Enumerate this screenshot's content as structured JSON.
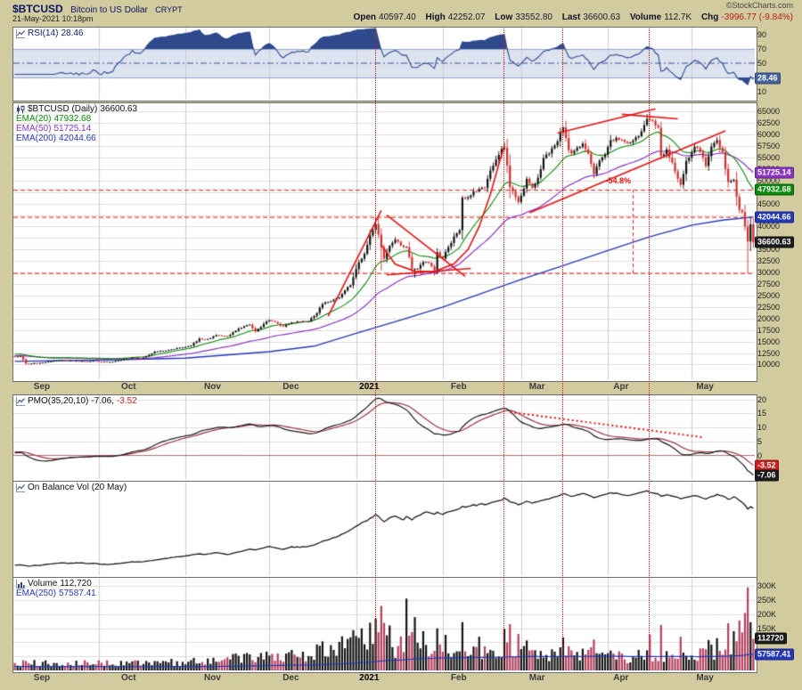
{
  "header": {
    "symbol": "$BTCUSD",
    "name": "Bitcoin to US Dollar",
    "exchange": "CRYPT",
    "datetime": "21-May-2021 10:18pm",
    "copyright": "©StockCharts.com",
    "quote": {
      "open_label": "Open",
      "open": "40597.40",
      "high_label": "High",
      "high": "42252.07",
      "low_label": "Low",
      "low": "33552.80",
      "last_label": "Last",
      "last": "36600.63",
      "volume_label": "Volume",
      "volume": "112.7K",
      "chg_label": "Chg",
      "chg": "-3996.77 (-9.84%)"
    }
  },
  "x_axis": {
    "end_day": 264,
    "month_gridline_days": [
      30,
      61,
      91,
      122,
      153,
      181,
      212,
      242
    ],
    "labels": [
      {
        "text": "Sep",
        "day": 10
      },
      {
        "text": "Oct",
        "day": 41
      },
      {
        "text": "Nov",
        "day": 71
      },
      {
        "text": "Dec",
        "day": 99
      },
      {
        "text": "2021",
        "day": 127,
        "year": true
      },
      {
        "text": "Feb",
        "day": 159
      },
      {
        "text": "Mar",
        "day": 187
      },
      {
        "text": "Apr",
        "day": 217
      },
      {
        "text": "May",
        "day": 247
      }
    ],
    "red_vline_days": [
      129,
      175,
      196,
      227
    ]
  },
  "chart_data": [
    {
      "id": "rsi",
      "type": "line",
      "panel_label": "RSI(14)",
      "current_text": "28.46",
      "current_value": 28.46,
      "ylim": [
        0,
        100
      ],
      "yticks": [
        [
          90,
          "90"
        ],
        [
          70,
          "70"
        ],
        [
          50,
          "50"
        ],
        [
          30,
          "30"
        ],
        [
          10,
          "10"
        ]
      ],
      "overbought": 70,
      "oversold": 30,
      "midline": 50,
      "line_color": "#2e4a8c",
      "band_color": "#dde4f0",
      "badges": [
        {
          "value": 28.46,
          "text": "28.46",
          "bg": "#46639c"
        }
      ],
      "derived_from": "RSI(14) computed from daily closes below"
    },
    {
      "id": "price",
      "type": "candlestick",
      "panel_label": "$BTCUSD (Daily)",
      "last_text": "36600.63",
      "last_value": 36600.63,
      "ylim": [
        6800,
        66800
      ],
      "yticks": [
        [
          65000,
          "65000"
        ],
        [
          62500,
          "62500"
        ],
        [
          60000,
          "60000"
        ],
        [
          57500,
          "57500"
        ],
        [
          55000,
          "55000"
        ],
        [
          52500,
          "52500"
        ],
        [
          50000,
          "50000"
        ],
        [
          45000,
          "45000"
        ],
        [
          40000,
          "40000"
        ],
        [
          35000,
          "35000"
        ],
        [
          32500,
          "32500"
        ],
        [
          30000,
          "30000"
        ],
        [
          27500,
          "27500"
        ],
        [
          25000,
          "25000"
        ],
        [
          22500,
          "22500"
        ],
        [
          20000,
          "20000"
        ],
        [
          17500,
          "17500"
        ],
        [
          15000,
          "15000"
        ],
        [
          12500,
          "12500"
        ],
        [
          10000,
          "10000"
        ]
      ],
      "up_color": "#141414",
      "down_color": "#d22d2d",
      "overlays": [
        {
          "label": "EMA(20)",
          "text": "47932.68",
          "value": 47932.68,
          "color": "#0b8a0b",
          "period": 20
        },
        {
          "label": "EMA(50)",
          "text": "51725.14",
          "value": 51725.14,
          "color": "#8a35c4",
          "period": 50
        },
        {
          "label": "EMA(200)",
          "text": "42044.66",
          "value": 42044.66,
          "color": "#2438b8",
          "period": 200,
          "anchors": [
            [
              0,
              10700
            ],
            [
              30,
              10950
            ],
            [
              61,
              11400
            ],
            [
              91,
              12800
            ],
            [
              107,
              14000
            ],
            [
              122,
              16800
            ],
            [
              137,
              19500
            ],
            [
              153,
              22500
            ],
            [
              167,
              25500
            ],
            [
              181,
              28500
            ],
            [
              196,
              31500
            ],
            [
              212,
              34800
            ],
            [
              227,
              37800
            ],
            [
              242,
              40300
            ],
            [
              253,
              41400
            ],
            [
              264,
              42044.66
            ]
          ]
        }
      ],
      "close_anchors": [
        [
          0,
          11720
        ],
        [
          2,
          11900
        ],
        [
          4,
          10190
        ],
        [
          8,
          10340
        ],
        [
          12,
          10660
        ],
        [
          16,
          10950
        ],
        [
          20,
          10850
        ],
        [
          24,
          10700
        ],
        [
          28,
          10760
        ],
        [
          31,
          10620
        ],
        [
          34,
          10570
        ],
        [
          38,
          10940
        ],
        [
          42,
          11420
        ],
        [
          46,
          11500
        ],
        [
          50,
          12780
        ],
        [
          54,
          13050
        ],
        [
          58,
          13560
        ],
        [
          60,
          13800
        ],
        [
          63,
          14100
        ],
        [
          66,
          15600
        ],
        [
          69,
          15480
        ],
        [
          72,
          16320
        ],
        [
          76,
          16100
        ],
        [
          80,
          17800
        ],
        [
          84,
          18720
        ],
        [
          86,
          17150
        ],
        [
          89,
          18760
        ],
        [
          91,
          19700
        ],
        [
          94,
          18800
        ],
        [
          96,
          18320
        ],
        [
          99,
          19150
        ],
        [
          102,
          19360
        ],
        [
          105,
          19430
        ],
        [
          108,
          21310
        ],
        [
          110,
          23100
        ],
        [
          113,
          23820
        ],
        [
          116,
          24710
        ],
        [
          118,
          26280
        ],
        [
          120,
          27080
        ],
        [
          121,
          29000
        ],
        [
          123,
          32200
        ],
        [
          125,
          34050
        ],
        [
          127,
          38150
        ],
        [
          129,
          40670
        ],
        [
          131,
          35480
        ],
        [
          132,
          33010
        ],
        [
          134,
          35880
        ],
        [
          136,
          37320
        ],
        [
          138,
          36010
        ],
        [
          140,
          35510
        ],
        [
          142,
          31000
        ],
        [
          144,
          30830
        ],
        [
          146,
          32250
        ],
        [
          148,
          32110
        ],
        [
          150,
          30410
        ],
        [
          151,
          34320
        ],
        [
          153,
          33110
        ],
        [
          155,
          35470
        ],
        [
          157,
          37620
        ],
        [
          159,
          39240
        ],
        [
          160,
          46370
        ],
        [
          162,
          46320
        ],
        [
          164,
          47500
        ],
        [
          166,
          47910
        ],
        [
          168,
          48620
        ],
        [
          170,
          52150
        ],
        [
          173,
          55890
        ],
        [
          175,
          57410
        ],
        [
          177,
          48820
        ],
        [
          179,
          46280
        ],
        [
          180,
          45140
        ],
        [
          182,
          48380
        ],
        [
          183,
          50410
        ],
        [
          185,
          48750
        ],
        [
          187,
          50330
        ],
        [
          189,
          54870
        ],
        [
          191,
          55910
        ],
        [
          193,
          57770
        ],
        [
          196,
          61190
        ],
        [
          198,
          56830
        ],
        [
          199,
          55610
        ],
        [
          201,
          56900
        ],
        [
          203,
          58080
        ],
        [
          205,
          55770
        ],
        [
          207,
          51680
        ],
        [
          209,
          54320
        ],
        [
          211,
          55810
        ],
        [
          213,
          58790
        ],
        [
          215,
          59120
        ],
        [
          217,
          58720
        ],
        [
          219,
          58040
        ],
        [
          221,
          59110
        ],
        [
          223,
          59790
        ],
        [
          225,
          62060
        ],
        [
          226,
          63520
        ],
        [
          227,
          63110
        ],
        [
          229,
          62240
        ],
        [
          230,
          61390
        ],
        [
          231,
          55040
        ],
        [
          233,
          56410
        ],
        [
          235,
          53820
        ],
        [
          237,
          50510
        ],
        [
          238,
          49010
        ],
        [
          240,
          54020
        ],
        [
          241,
          54880
        ],
        [
          243,
          57690
        ],
        [
          245,
          56590
        ],
        [
          247,
          53210
        ],
        [
          249,
          57360
        ],
        [
          251,
          58930
        ],
        [
          253,
          55880
        ],
        [
          255,
          49710
        ],
        [
          257,
          49880
        ],
        [
          259,
          43540
        ],
        [
          260,
          42880
        ],
        [
          261,
          40120
        ],
        [
          262,
          36730
        ],
        [
          263,
          40580
        ],
        [
          264,
          36600.63
        ]
      ],
      "high_overrides": [
        [
          129,
          41960
        ],
        [
          160,
          46700
        ],
        [
          175,
          58350
        ],
        [
          196,
          61780
        ],
        [
          227,
          64860
        ],
        [
          251,
          59500
        ]
      ],
      "low_overrides": [
        [
          131,
          30420
        ],
        [
          143,
          28850
        ],
        [
          150,
          29300
        ],
        [
          262,
          30000
        ]
      ],
      "badges": [
        {
          "value": 51725.14,
          "text": "51725.14",
          "bg": "#8a35c4"
        },
        {
          "value": 47932.68,
          "text": "47932.68",
          "bg": "#0b8a0b"
        },
        {
          "value": 42044.66,
          "text": "42044.66",
          "bg": "#2438b8"
        },
        {
          "value": 36600.63,
          "text": "36600.63",
          "bg": "#1c1c1c"
        }
      ],
      "red_hlines": [
        47900,
        42000,
        29800
      ],
      "trend_segments": [
        [
          112,
          20500,
          131,
          43500
        ],
        [
          133,
          42500,
          161,
          29200
        ],
        [
          133,
          29500,
          163,
          30900
        ],
        [
          184,
          43000,
          254,
          60800
        ],
        [
          194,
          60300,
          229,
          65600
        ],
        [
          217,
          64400,
          237,
          63400
        ]
      ],
      "trend_curve": [
        [
          131,
          36000
        ],
        [
          136,
          31800
        ],
        [
          143,
          30300
        ],
        [
          150,
          30200
        ],
        [
          157,
          31900
        ],
        [
          162,
          35000
        ],
        [
          166,
          40000
        ],
        [
          170,
          47000
        ],
        [
          173,
          53500
        ],
        [
          175,
          57600
        ]
      ],
      "measure_line": {
        "day": 221,
        "from": 29800,
        "to": 47900
      },
      "pct_annotation": {
        "text": "-54.8%",
        "day": 216,
        "price": 48800
      }
    },
    {
      "id": "pmo",
      "type": "line",
      "panel_label": "PMO(35,20,10)",
      "pmo_text": "-7.06,",
      "signal_text": "-3.52",
      "params": [
        35,
        20,
        10
      ],
      "end_value": -7.06,
      "signal_end_value": -3.52,
      "peak_value": 20.5,
      "ylim": [
        -8.4,
        21.5
      ],
      "yticks": [
        [
          20,
          "20"
        ],
        [
          15,
          "15"
        ],
        [
          10,
          "10"
        ],
        [
          5,
          "5"
        ],
        [
          0,
          "0"
        ]
      ],
      "pmo_color": "#1a1a1a",
      "signal_color": "#9a3345",
      "badges": [
        {
          "value": -3.52,
          "text": "-3.52",
          "bg": "#cc1f1f"
        },
        {
          "value": -7.06,
          "text": "-7.06",
          "bg": "#1c1c1c"
        }
      ],
      "dotted_trendline": [
        [
          177,
          15.5
        ],
        [
          246,
          6.5
        ]
      ]
    },
    {
      "id": "obv",
      "type": "line",
      "panel_label": "On Balance Vol (20 May)",
      "line_color": "#1a1a1a",
      "derived_from": "cumulative signed volume of the series below"
    },
    {
      "id": "volume",
      "type": "bar",
      "panel_label": "Volume",
      "current_text": "112,720",
      "current_value": 112720,
      "ema_label": "EMA(250)",
      "ema_text": "57587.41",
      "ema_value": 57587.41,
      "ema_color": "#2438b8",
      "ylim": [
        0,
        330000
      ],
      "yticks": [
        [
          300000,
          "300K"
        ],
        [
          250000,
          "250K"
        ],
        [
          200000,
          "200K"
        ],
        [
          150000,
          "150K"
        ]
      ],
      "up_color": "#141414",
      "down_color": "#b5405e",
      "base_anchors": [
        [
          0,
          23000
        ],
        [
          30,
          24000
        ],
        [
          60,
          28000
        ],
        [
          91,
          42000
        ],
        [
          110,
          55000
        ],
        [
          122,
          95000
        ],
        [
          135,
          75000
        ],
        [
          153,
          65000
        ],
        [
          181,
          55000
        ],
        [
          212,
          48000
        ],
        [
          242,
          52000
        ],
        [
          255,
          70000
        ],
        [
          264,
          100000
        ]
      ],
      "spikes": {
        "124": 150000,
        "127": 170000,
        "129": 185000,
        "131": 230000,
        "134": 160000,
        "140": 256000,
        "143": 190000,
        "146": 140000,
        "151": 150000,
        "160": 172000,
        "166": 120000,
        "175": 148000,
        "177": 165000,
        "180": 130000,
        "196": 118000,
        "207": 110000,
        "227": 128000,
        "231": 162000,
        "238": 120000,
        "251": 115000,
        "255": 168000,
        "257": 140000,
        "259": 178000,
        "261": 205000,
        "262": 296000,
        "263": 172000,
        "264": 112720
      },
      "badges": [
        {
          "value": 112720,
          "text": "112720",
          "bg": "#1c1c1c"
        },
        {
          "value": 57587.41,
          "text": "57587.41",
          "bg": "#2438b8"
        }
      ]
    }
  ]
}
